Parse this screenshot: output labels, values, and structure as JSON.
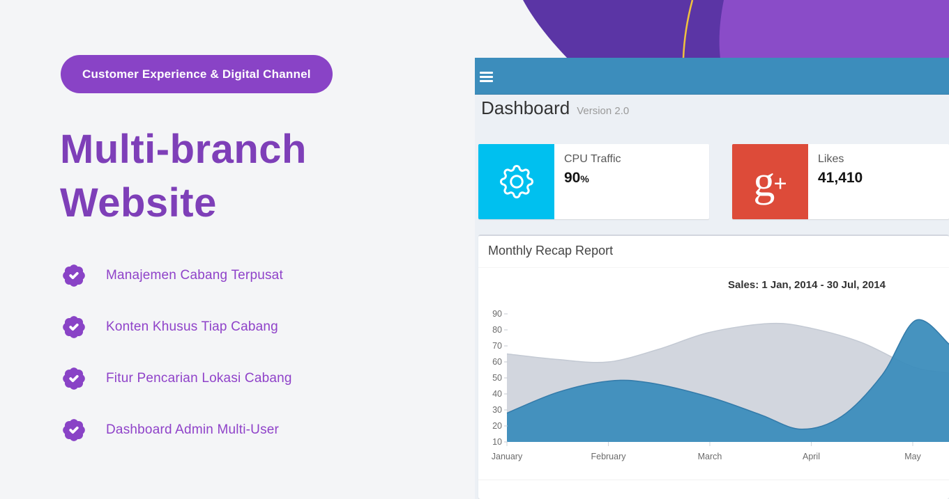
{
  "hero": {
    "badge_label": "Customer Experience & Digital Channel",
    "title_line1": "Multi-branch",
    "title_line2": "Website",
    "features": [
      {
        "label": "Manajemen Cabang Terpusat"
      },
      {
        "label": "Konten Khusus Tiap Cabang"
      },
      {
        "label": "Fitur Pencarian Lokasi Cabang"
      },
      {
        "label": "Dashboard Admin Multi-User"
      }
    ],
    "accent_color": "#8943c6",
    "title_color": "#7e3fb8"
  },
  "decor_colors": {
    "purple_dark": "#5b35a5",
    "purple_light": "#8a4cc8",
    "gold_line": "#f0c23e"
  },
  "dashboard": {
    "header_color": "#3c8dbc",
    "menu_icon": "hamburger-icon",
    "title": "Dashboard",
    "version": "Version 2.0",
    "info_boxes": [
      {
        "icon": "gear-icon",
        "icon_bg": "#00c0ef",
        "label": "CPU Traffic",
        "value": "90",
        "suffix": "%"
      },
      {
        "icon": "google-plus-icon",
        "icon_bg": "#dd4b39",
        "label": "Likes",
        "value": "41,410",
        "suffix": ""
      }
    ],
    "panel": {
      "title": "Monthly Recap Report",
      "chart_title": "Sales: 1 Jan, 2014 - 30 Jul, 2014"
    }
  },
  "chart_data": {
    "type": "area",
    "title": "Sales: 1 Jan, 2014 - 30 Jul, 2014",
    "x_tick_labels": [
      "January",
      "February",
      "March",
      "April",
      "May"
    ],
    "y_ticks": [
      10,
      20,
      30,
      40,
      50,
      60,
      70,
      80,
      90
    ],
    "ylim": [
      10,
      90
    ],
    "x_unit": "months (0 = January 2014, fractional = partial month, visible range 0 - 4.36)",
    "grid": false,
    "legend": "none",
    "series": [
      {
        "name": "background-series",
        "color": "#d2d6de",
        "line_color": "#c3c9d3",
        "opacity": 1,
        "points": [
          [
            0,
            65
          ],
          [
            0.5,
            61.5
          ],
          [
            1,
            60
          ],
          [
            1.5,
            68
          ],
          [
            2,
            78.5
          ],
          [
            2.6,
            84
          ],
          [
            3,
            81
          ],
          [
            3.5,
            72
          ],
          [
            4,
            57
          ],
          [
            4.36,
            53
          ]
        ]
      },
      {
        "name": "sales-series",
        "color": "#3c8dbc",
        "line_color": "#337aa9",
        "opacity": 0.95,
        "points": [
          [
            0,
            28
          ],
          [
            0.5,
            41
          ],
          [
            1,
            48
          ],
          [
            1.4,
            47
          ],
          [
            2,
            38
          ],
          [
            2.5,
            27
          ],
          [
            2.9,
            18
          ],
          [
            3.3,
            26
          ],
          [
            3.7,
            52
          ],
          [
            4.03,
            86
          ],
          [
            4.36,
            71
          ]
        ]
      }
    ]
  }
}
